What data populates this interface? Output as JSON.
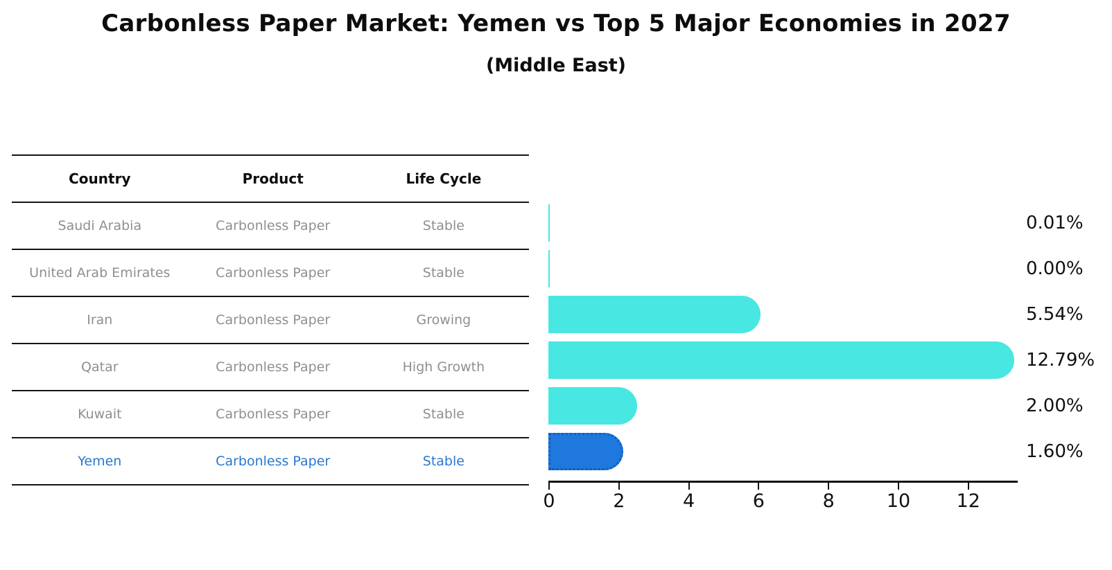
{
  "title": "Carbonless Paper Market: Yemen vs Top 5 Major Economies in 2027",
  "subtitle": "(Middle East)",
  "table": {
    "columns": [
      "Country",
      "Product",
      "Life Cycle"
    ],
    "rows": [
      {
        "country": "Saudi Arabia",
        "product": "Carbonless Paper",
        "life_cycle": "Stable"
      },
      {
        "country": "United Arab Emirates",
        "product": "Carbonless Paper",
        "life_cycle": "Stable"
      },
      {
        "country": "Iran",
        "product": "Carbonless Paper",
        "life_cycle": "Growing"
      },
      {
        "country": "Qatar",
        "product": "Carbonless Paper",
        "life_cycle": "High Growth"
      },
      {
        "country": "Kuwait",
        "product": "Carbonless Paper",
        "life_cycle": "Stable"
      },
      {
        "country": "Yemen",
        "product": "Carbonless Paper",
        "life_cycle": "Stable"
      }
    ],
    "highlight_row": "Yemen"
  },
  "chart_data": {
    "type": "bar",
    "orientation": "horizontal",
    "title": "Carbonless Paper Market: Yemen vs Top 5 Major Economies in 2027",
    "subtitle": "(Middle East)",
    "categories": [
      "Saudi Arabia",
      "United Arab Emirates",
      "Iran",
      "Qatar",
      "Kuwait",
      "Yemen"
    ],
    "values": [
      0.01,
      0.0,
      5.54,
      12.79,
      2.0,
      1.6
    ],
    "value_labels": [
      "0.01%",
      "0.00%",
      "5.54%",
      "12.79%",
      "2.00%",
      "1.60%"
    ],
    "x_ticks": [
      0,
      2,
      4,
      6,
      8,
      10,
      12
    ],
    "xlim": [
      0,
      13.4
    ],
    "grid": false,
    "legend": false,
    "highlight_index": 5,
    "colors": {
      "bar": "#48e7e2",
      "highlight_bar": "#1e78dd",
      "highlight_bar_edge": "#0d5ec4",
      "highlight_text": "#2878cf",
      "axis": "#111111",
      "table_text": "#8f8f8f",
      "heading_text": "#0d0d0d"
    }
  }
}
